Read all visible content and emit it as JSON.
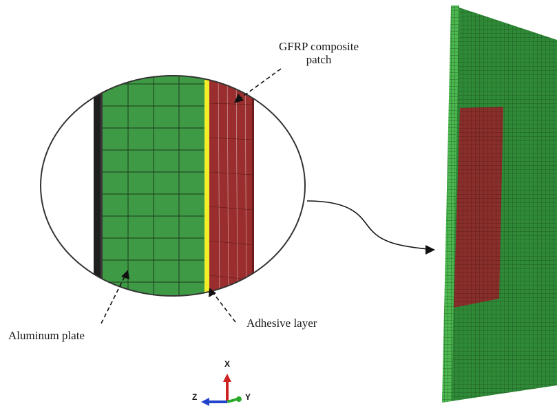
{
  "labels": {
    "gfrp_line1": "GFRP composite",
    "gfrp_line2": "patch",
    "aluminum": "Aluminum plate",
    "adhesive": "Adhesive layer"
  },
  "axes": {
    "x": "X",
    "y": "Y",
    "z": "Z"
  },
  "colors": {
    "aluminum": "#3f9a45",
    "aluminum_dark": "#2f7a36",
    "patch": "#9a2e2e",
    "adhesive": "#f2ef2a",
    "edge": "#1e1e1e",
    "axis_x": "#cc2222",
    "axis_y": "#2aaa2a",
    "axis_z": "#2244cc"
  }
}
